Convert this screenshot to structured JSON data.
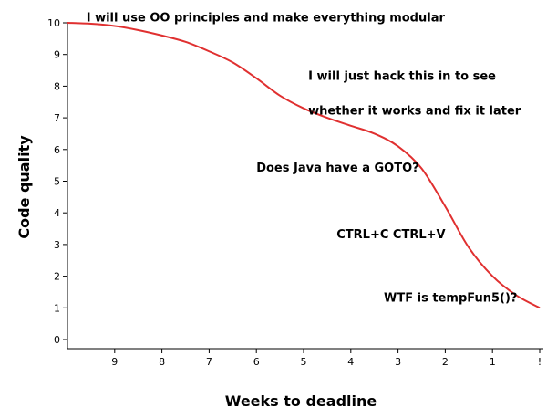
{
  "chart_data": {
    "type": "line",
    "title": "",
    "xlabel": "Weeks to deadline",
    "ylabel": "Code quality",
    "x_tick_labels": [
      "9",
      "8",
      "7",
      "6",
      "5",
      "4",
      "3",
      "2",
      "1",
      "!"
    ],
    "x_tick_positions": [
      9,
      8,
      7,
      6,
      5,
      4,
      3,
      2,
      1,
      0
    ],
    "y_tick_labels": [
      "0",
      "1",
      "2",
      "3",
      "4",
      "5",
      "6",
      "7",
      "8",
      "9",
      "10"
    ],
    "xlim": [
      10,
      0
    ],
    "ylim": [
      0,
      10
    ],
    "grid": false,
    "series": [
      {
        "color": "#e03030",
        "x": [
          10,
          9.5,
          9,
          8.5,
          8,
          7.5,
          7,
          6.5,
          6,
          5.5,
          5,
          4.5,
          4,
          3.5,
          3,
          2.5,
          2,
          1.5,
          1,
          0.5,
          0
        ],
        "y": [
          10,
          9.97,
          9.9,
          9.77,
          9.6,
          9.4,
          9.1,
          8.75,
          8.25,
          7.7,
          7.3,
          7.0,
          6.75,
          6.5,
          6.1,
          5.4,
          4.2,
          2.9,
          2.0,
          1.4,
          1.0
        ]
      }
    ],
    "annotations": [
      {
        "text": "I will use OO principles and make everything modular",
        "x": 9.6,
        "y": 10.05
      },
      {
        "text": "I will just hack this in to see",
        "x": 4.9,
        "y": 8.2
      },
      {
        "text": "whether it works and fix it later",
        "x": 4.9,
        "y": 7.1
      },
      {
        "text": "Does Java have a GOTO?",
        "x": 6.0,
        "y": 5.3
      },
      {
        "text": "CTRL+C CTRL+V",
        "x": 4.3,
        "y": 3.2
      },
      {
        "text": "WTF is tempFun5()?",
        "x": 3.3,
        "y": 1.2
      }
    ]
  }
}
